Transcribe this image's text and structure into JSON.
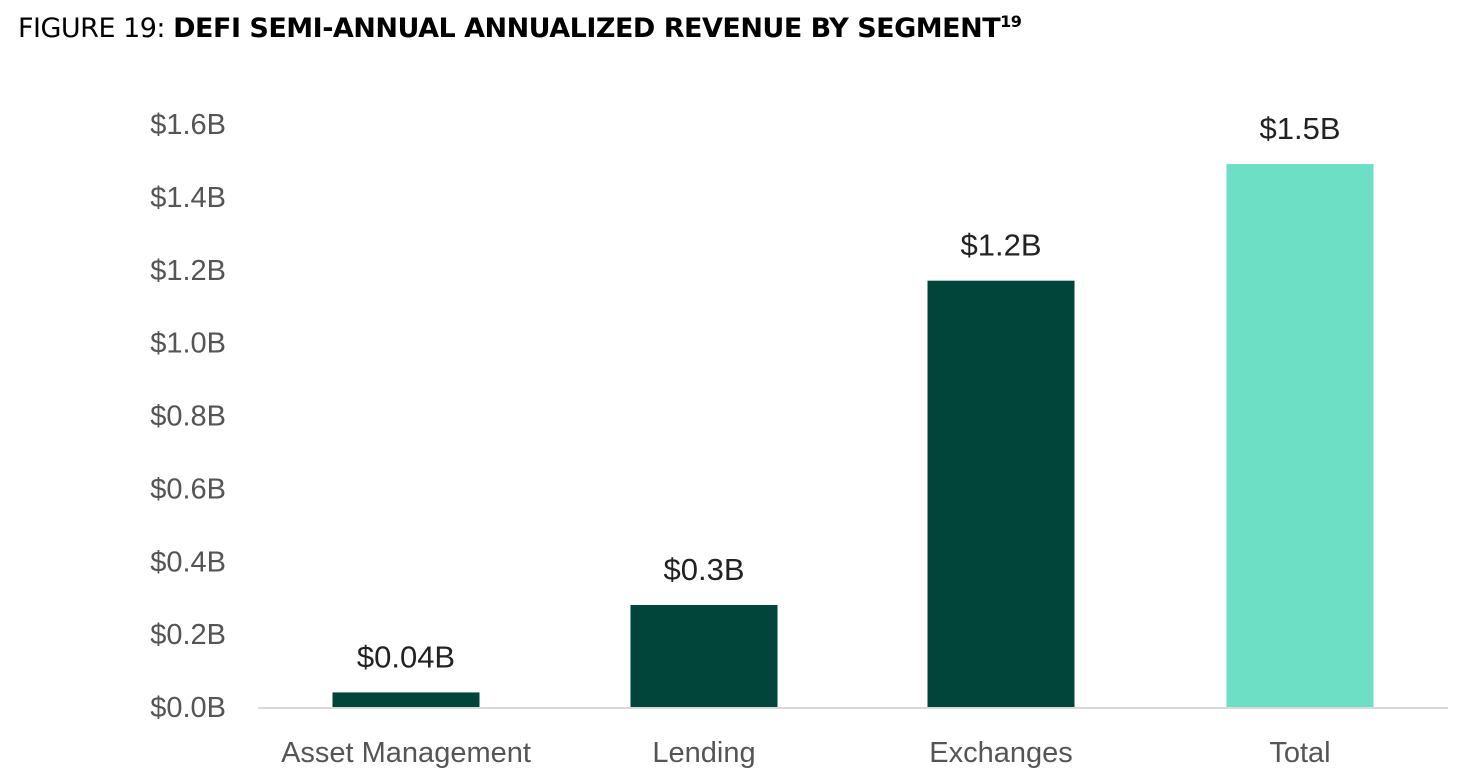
{
  "figure_label": "FIGURE 19:",
  "chart_data": {
    "type": "bar",
    "title": "DEFI SEMI-ANNUAL ANNUALIZED REVENUE BY SEGMENT",
    "title_footnote": "19",
    "categories": [
      "Asset Management",
      "Lending",
      "Exchanges",
      "Total"
    ],
    "values": [
      0.04,
      0.28,
      1.17,
      1.49
    ],
    "data_labels": [
      "$0.04B",
      "$0.3B",
      "$1.2B",
      "$1.5B"
    ],
    "bar_colors": [
      "#00443a",
      "#00443a",
      "#00443a",
      "#6ddfc4"
    ],
    "ylim": [
      0,
      1.6
    ],
    "yticks": [
      0,
      0.2,
      0.4,
      0.6,
      0.8,
      1.0,
      1.2,
      1.4,
      1.6
    ],
    "ytick_labels": [
      "$0.0B",
      "$0.2B",
      "$0.4B",
      "$0.6B",
      "$0.8B",
      "$1.0B",
      "$1.2B",
      "$1.4B",
      "$1.6B"
    ],
    "xlabel": "",
    "ylabel": "",
    "grid": false,
    "legend": "none"
  }
}
